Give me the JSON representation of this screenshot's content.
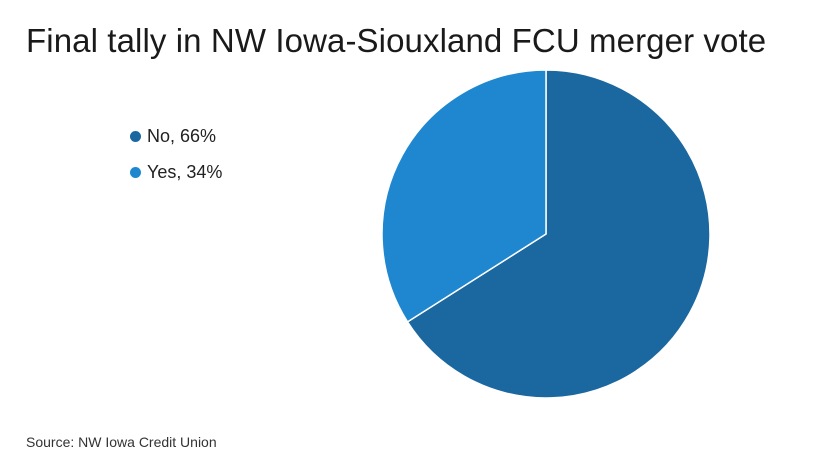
{
  "title": "Final tally in NW Iowa-Siouxland FCU merger vote",
  "source": "Source: NW Iowa Credit Union",
  "legend": [
    {
      "label": "No, 66%",
      "color": "#1b67a0"
    },
    {
      "label": "Yes, 34%",
      "color": "#1f87d0"
    }
  ],
  "chart_data": {
    "type": "pie",
    "title": "Final tally in NW Iowa-Siouxland FCU merger vote",
    "categories": [
      "No",
      "Yes"
    ],
    "values": [
      66,
      34
    ],
    "unit": "%",
    "colors": [
      "#1b67a0",
      "#1f87d0"
    ],
    "legend_position": "left"
  }
}
